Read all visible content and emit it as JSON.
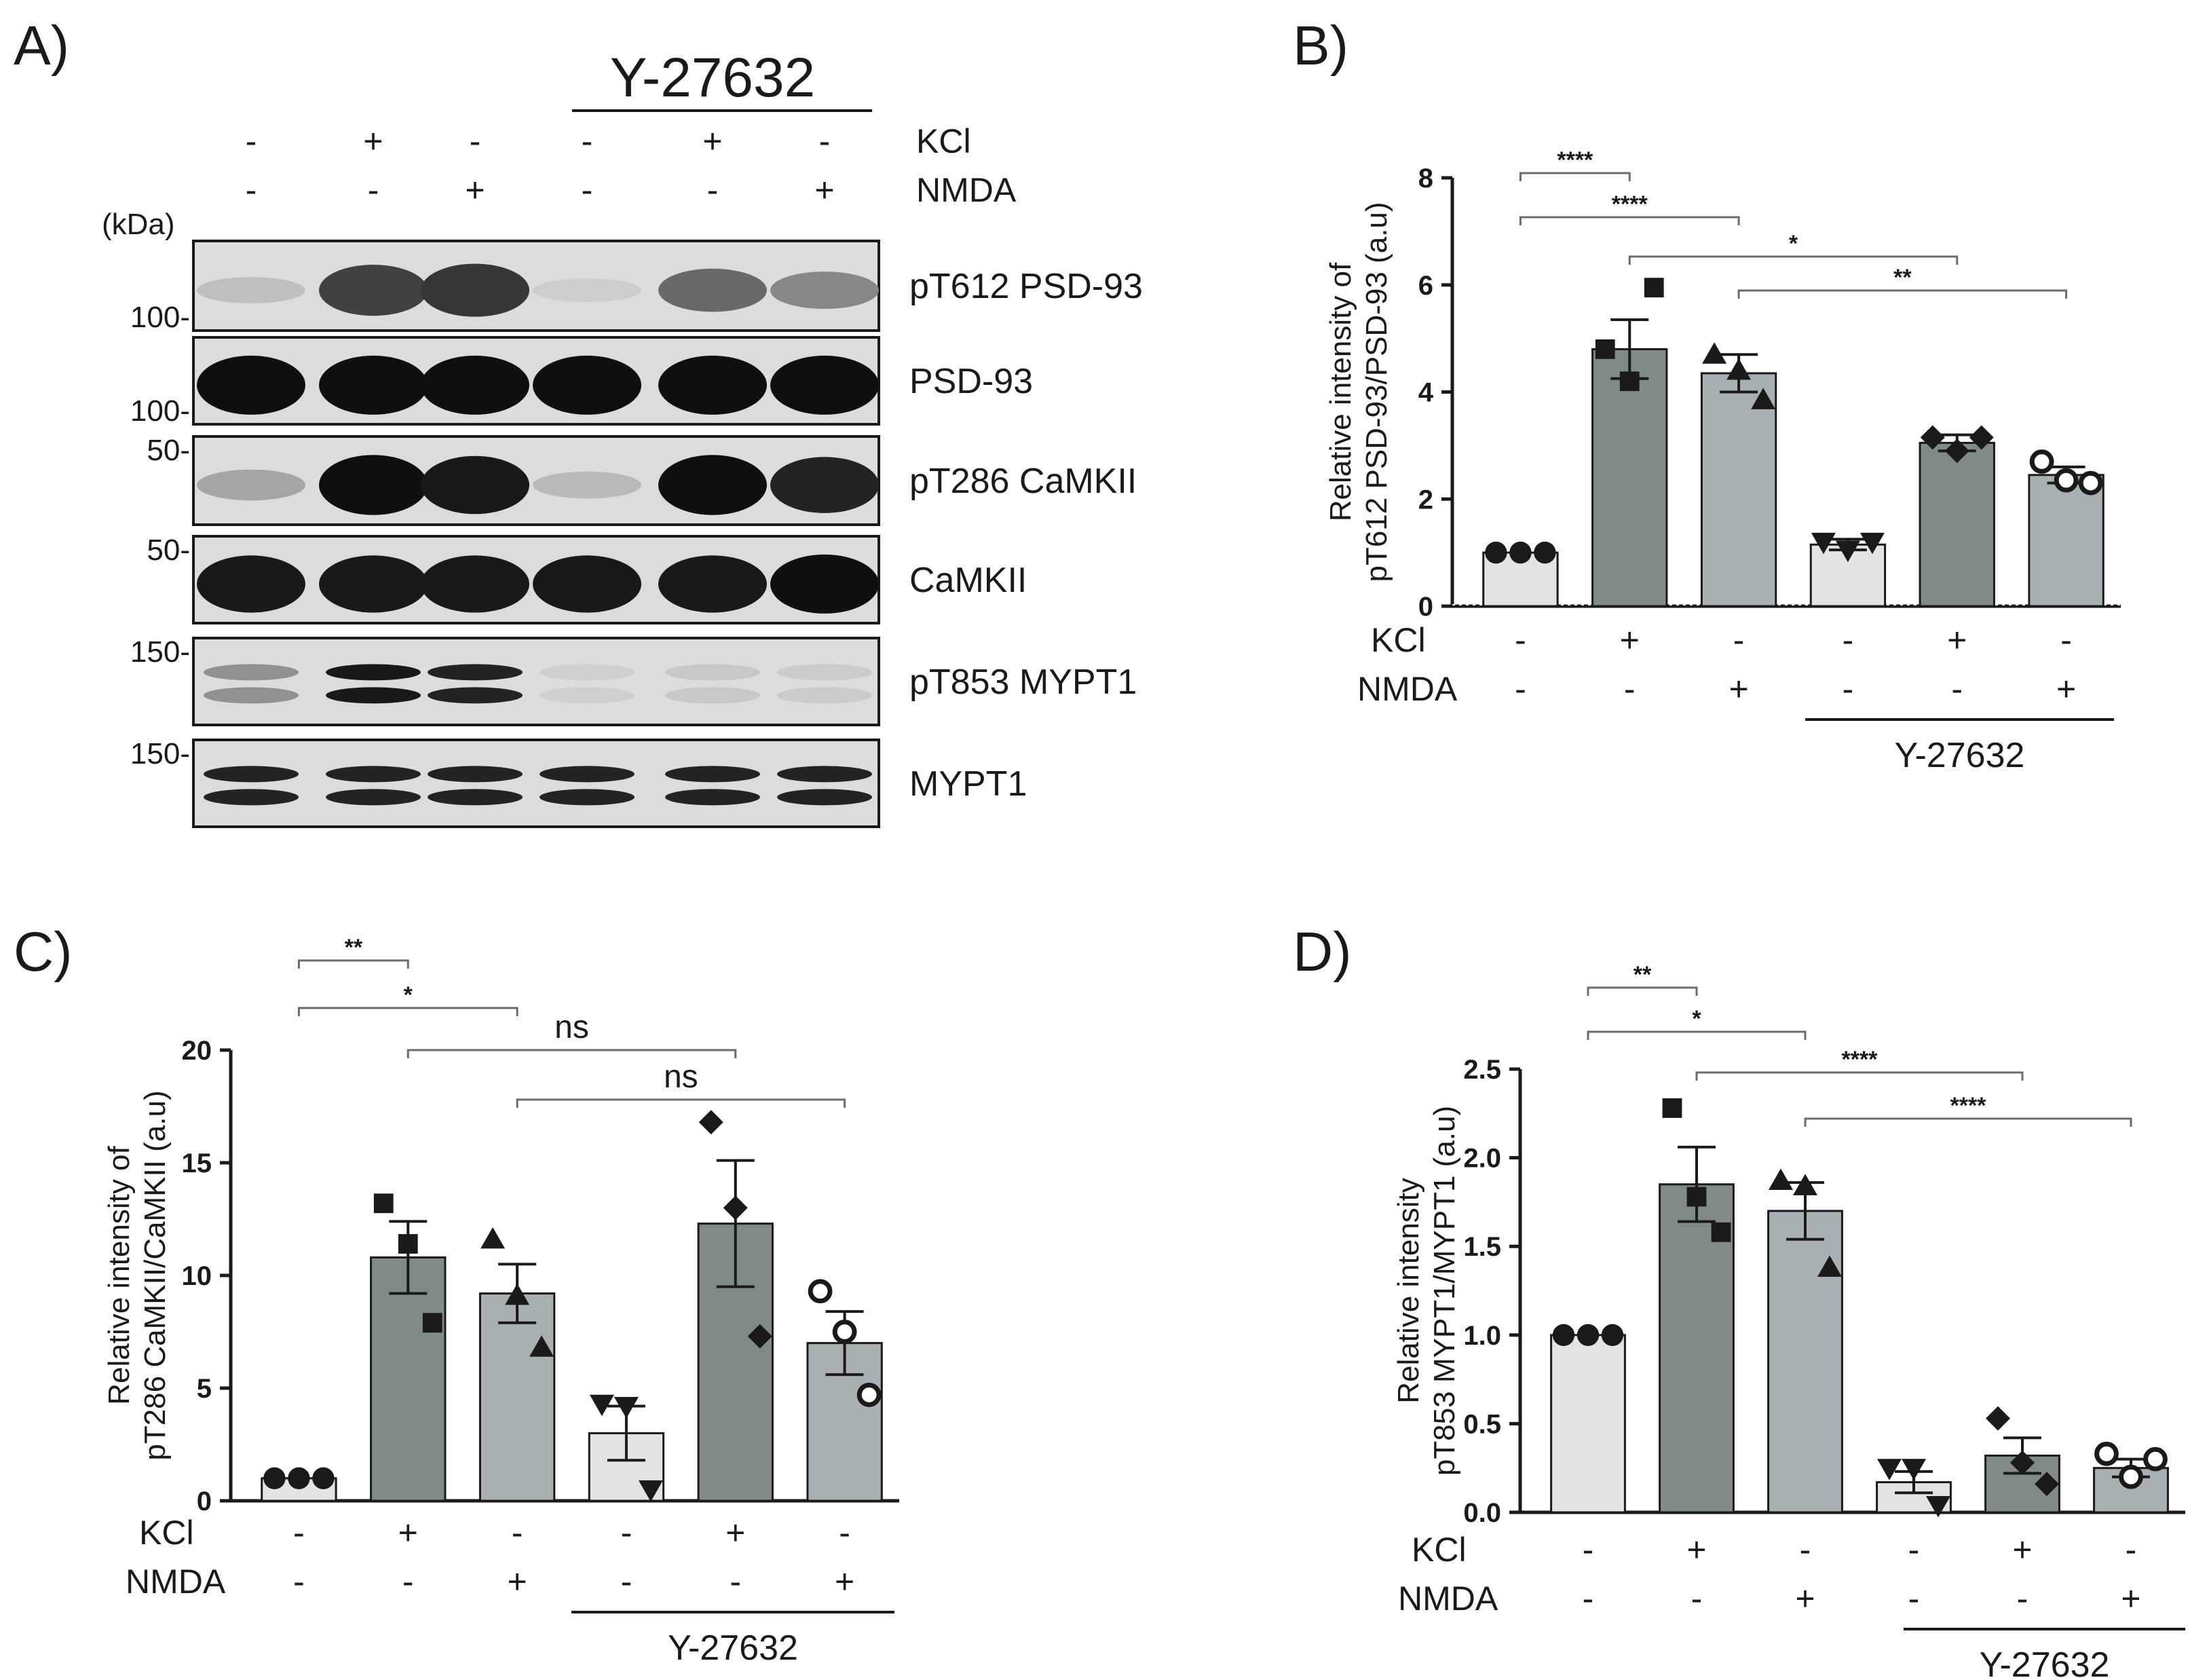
{
  "panel_a": {
    "letter": "A)",
    "inhibitor": "Y-27632",
    "kda_label": "(kDa)",
    "treatments": [
      {
        "label": "KCl",
        "signs": [
          "-",
          "+",
          "-",
          "-",
          "+",
          "-"
        ]
      },
      {
        "label": "NMDA",
        "signs": [
          "-",
          "-",
          "+",
          "-",
          "-",
          "+"
        ]
      }
    ],
    "blots": [
      {
        "name": "pT612 PSD-93",
        "marker": "100",
        "intensity": [
          0.12,
          0.75,
          0.8,
          0.05,
          0.55,
          0.4
        ],
        "double": false
      },
      {
        "name": "PSD-93",
        "marker": "100",
        "intensity": [
          1,
          1,
          1,
          1,
          1,
          1
        ],
        "double": false
      },
      {
        "name": "pT286 CaMKII",
        "marker": "50",
        "intensity": [
          0.25,
          1,
          0.95,
          0.15,
          1,
          0.9
        ],
        "double": false
      },
      {
        "name": "CaMKII",
        "marker": "50",
        "intensity": [
          0.95,
          0.95,
          0.95,
          0.95,
          0.95,
          1
        ],
        "double": false
      },
      {
        "name": "pT853 MYPT1",
        "marker": "150",
        "intensity": [
          0.35,
          0.95,
          0.9,
          0.04,
          0.08,
          0.06
        ],
        "double": true
      },
      {
        "name": "MYPT1",
        "marker": "150",
        "intensity": [
          0.9,
          0.9,
          0.9,
          0.9,
          0.9,
          0.9
        ],
        "double": true
      }
    ]
  },
  "colors": {
    "bars": [
      "#e2e4e4",
      "#7f8a89",
      "#a9b0b3",
      "#e2e4e4",
      "#7f8a89",
      "#a9b0b3"
    ],
    "ink": "#1a1a1a",
    "bracket": "#6b6b6b"
  },
  "chart_data": [
    {
      "panel": "B)",
      "type": "bar",
      "ylabel_line1": "Relative intensity of",
      "ylabel_line2": "pT612 PSD-93/PSD-93 (a.u)",
      "ylim": [
        0,
        8
      ],
      "yticks": [
        "0",
        "2",
        "4",
        "6",
        "8"
      ],
      "tick_values": [
        0,
        2,
        4,
        6,
        8
      ],
      "categories": [
        "1",
        "2",
        "3",
        "4",
        "5",
        "6"
      ],
      "values": [
        1.0,
        4.8,
        4.35,
        1.15,
        3.05,
        2.45
      ],
      "sem": [
        0,
        0.55,
        0.35,
        0.1,
        0.15,
        0.15
      ],
      "points": [
        [
          1.0,
          1.0,
          1.0
        ],
        [
          4.8,
          4.2,
          5.95
        ],
        [
          4.7,
          4.4,
          3.85
        ],
        [
          1.2,
          1.05,
          1.2
        ],
        [
          3.15,
          2.9,
          3.15
        ],
        [
          2.7,
          2.35,
          2.3
        ]
      ],
      "markers": [
        "circle",
        "square",
        "triangle",
        "triangle-down",
        "diamond",
        "open-circle"
      ],
      "significance": [
        {
          "from": 0,
          "to": 1,
          "label": "****"
        },
        {
          "from": 0,
          "to": 2,
          "label": "****"
        },
        {
          "from": 1,
          "to": 4,
          "label": "*"
        },
        {
          "from": 2,
          "to": 5,
          "label": "**"
        }
      ],
      "dotted_baseline": true,
      "treatments": [
        {
          "label": "KCl",
          "signs": [
            "-",
            "+",
            "-",
            "-",
            "+",
            "-"
          ]
        },
        {
          "label": "NMDA",
          "signs": [
            "-",
            "-",
            "+",
            "-",
            "-",
            "+"
          ]
        }
      ],
      "inhibitor": "Y-27632"
    },
    {
      "panel": "C)",
      "type": "bar",
      "ylabel_line1": "Relative intensity of",
      "ylabel_line2": "pT286 CaMKII/CaMKII (a.u)",
      "ylim": [
        0,
        20
      ],
      "yticks": [
        "0",
        "5",
        "10",
        "15",
        "20"
      ],
      "tick_values": [
        0,
        5,
        10,
        15,
        20
      ],
      "categories": [
        "1",
        "2",
        "3",
        "4",
        "5",
        "6"
      ],
      "values": [
        1.0,
        10.8,
        9.2,
        3.0,
        12.3,
        7.0
      ],
      "sem": [
        0,
        1.6,
        1.3,
        1.2,
        2.8,
        1.4
      ],
      "points": [
        [
          1.0,
          1.0,
          1.0
        ],
        [
          13.2,
          11.4,
          7.9
        ],
        [
          11.6,
          9.1,
          6.8
        ],
        [
          4.3,
          4.2,
          0.5
        ],
        [
          16.8,
          13.0,
          7.3
        ],
        [
          9.3,
          7.5,
          4.7
        ]
      ],
      "markers": [
        "circle",
        "square",
        "triangle",
        "triangle-down",
        "diamond",
        "open-circle"
      ],
      "significance": [
        {
          "from": 0,
          "to": 1,
          "label": "**"
        },
        {
          "from": 0,
          "to": 2,
          "label": "*"
        },
        {
          "from": 1,
          "to": 4,
          "label": "ns"
        },
        {
          "from": 2,
          "to": 5,
          "label": "ns"
        }
      ],
      "dotted_baseline": false,
      "treatments": [
        {
          "label": "KCl",
          "signs": [
            "-",
            "+",
            "-",
            "-",
            "+",
            "-"
          ]
        },
        {
          "label": "NMDA",
          "signs": [
            "-",
            "-",
            "+",
            "-",
            "-",
            "+"
          ]
        }
      ],
      "inhibitor": "Y-27632"
    },
    {
      "panel": "D)",
      "type": "bar",
      "ylabel_line1": "Relative intensity",
      "ylabel_line2": "pT853 MYPT1/MYPT1 (a.u)",
      "ylim": [
        0,
        2.5
      ],
      "yticks": [
        "0.0",
        "0.5",
        "1.0",
        "1.5",
        "2.0",
        "2.5"
      ],
      "tick_values": [
        0,
        0.5,
        1.0,
        1.5,
        2.0,
        2.5
      ],
      "categories": [
        "1",
        "2",
        "3",
        "4",
        "5",
        "6"
      ],
      "values": [
        1.0,
        1.85,
        1.7,
        0.17,
        0.32,
        0.25
      ],
      "sem": [
        0,
        0.21,
        0.16,
        0.06,
        0.1,
        0.05
      ],
      "points": [
        [
          1.0,
          1.0,
          1.0
        ],
        [
          2.28,
          1.78,
          1.58
        ],
        [
          1.87,
          1.84,
          1.38
        ],
        [
          0.25,
          0.25,
          0.04
        ],
        [
          0.53,
          0.28,
          0.16
        ],
        [
          0.33,
          0.2,
          0.3
        ]
      ],
      "markers": [
        "circle",
        "square",
        "triangle",
        "triangle-down",
        "diamond",
        "open-circle"
      ],
      "significance": [
        {
          "from": 0,
          "to": 1,
          "label": "**"
        },
        {
          "from": 0,
          "to": 2,
          "label": "*"
        },
        {
          "from": 1,
          "to": 4,
          "label": "****"
        },
        {
          "from": 2,
          "to": 5,
          "label": "****"
        }
      ],
      "dotted_baseline": false,
      "treatments": [
        {
          "label": "KCl",
          "signs": [
            "-",
            "+",
            "-",
            "-",
            "+",
            "-"
          ]
        },
        {
          "label": "NMDA",
          "signs": [
            "-",
            "-",
            "+",
            "-",
            "-",
            "+"
          ]
        }
      ],
      "inhibitor": "Y-27632"
    }
  ]
}
